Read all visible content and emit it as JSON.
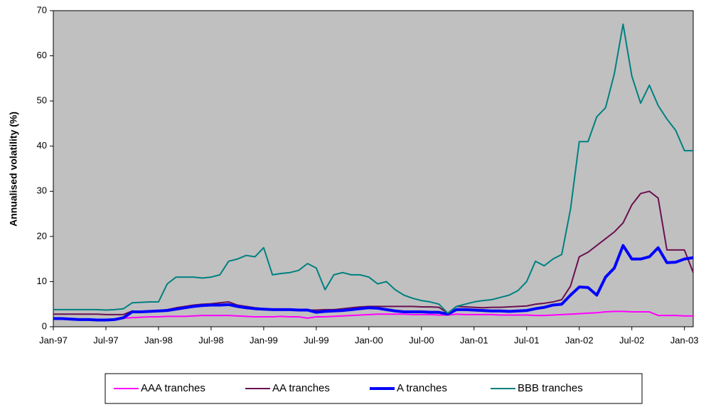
{
  "chart_data": {
    "type": "line",
    "y_label": "Annualised volatility (%)",
    "x": [
      "1997-01",
      "1997-02",
      "1997-03",
      "1997-04",
      "1997-05",
      "1997-06",
      "1997-07",
      "1997-08",
      "1997-09",
      "1997-10",
      "1997-11",
      "1997-12",
      "1998-01",
      "1998-02",
      "1998-03",
      "1998-04",
      "1998-05",
      "1998-06",
      "1998-07",
      "1998-08",
      "1998-09",
      "1998-10",
      "1998-11",
      "1998-12",
      "1999-01",
      "1999-02",
      "1999-03",
      "1999-04",
      "1999-05",
      "1999-06",
      "1999-07",
      "1999-08",
      "1999-09",
      "1999-10",
      "1999-11",
      "1999-12",
      "2000-01",
      "2000-02",
      "2000-03",
      "2000-04",
      "2000-05",
      "2000-06",
      "2000-07",
      "2000-08",
      "2000-09",
      "2000-10",
      "2000-11",
      "2000-12",
      "2001-01",
      "2001-02",
      "2001-03",
      "2001-04",
      "2001-05",
      "2001-06",
      "2001-07",
      "2001-08",
      "2001-09",
      "2001-10",
      "2001-11",
      "2001-12",
      "2002-01",
      "2002-02",
      "2002-03",
      "2002-04",
      "2002-05",
      "2002-06",
      "2002-07",
      "2002-08",
      "2002-09",
      "2002-10",
      "2002-11",
      "2002-12",
      "2003-01",
      "2003-02"
    ],
    "series": [
      {
        "name": "AAA tranches",
        "color": "#ff00ff",
        "width": 2,
        "values": [
          1.9,
          1.9,
          1.8,
          1.7,
          1.6,
          1.6,
          1.6,
          1.7,
          1.9,
          2,
          2.1,
          2.2,
          2.2,
          2.3,
          2.3,
          2.3,
          2.4,
          2.5,
          2.5,
          2.5,
          2.5,
          2.4,
          2.3,
          2.2,
          2.2,
          2.2,
          2.3,
          2.2,
          2.2,
          1.9,
          2.2,
          2.2,
          2.3,
          2.4,
          2.5,
          2.6,
          2.7,
          2.8,
          2.8,
          2.8,
          2.8,
          2.7,
          2.7,
          2.7,
          2.6,
          2.6,
          2.8,
          2.7,
          2.7,
          2.7,
          2.7,
          2.6,
          2.6,
          2.6,
          2.6,
          2.5,
          2.5,
          2.6,
          2.7,
          2.8,
          2.9,
          3,
          3.1,
          3.3,
          3.4,
          3.4,
          3.3,
          3.3,
          3.3,
          2.5,
          2.5,
          2.5,
          2.4,
          2.4
        ]
      },
      {
        "name": "AA tranches",
        "color": "#6b1050",
        "width": 2,
        "values": [
          2.8,
          2.8,
          2.8,
          2.8,
          2.8,
          2.8,
          2.7,
          2.7,
          2.7,
          3.5,
          3.3,
          3.4,
          3.6,
          3.8,
          4.2,
          4.5,
          4.8,
          5,
          5.1,
          5.3,
          5.5,
          4.8,
          4.5,
          4.2,
          4,
          3.8,
          3.7,
          3.8,
          3.8,
          3.7,
          3.7,
          3.8,
          3.8,
          4,
          4.2,
          4.4,
          4.5,
          4.5,
          4.5,
          4.5,
          4.5,
          4.5,
          4.4,
          4.4,
          4.3,
          3,
          4.5,
          4.4,
          4.3,
          4.2,
          4.3,
          4.3,
          4.4,
          4.5,
          4.6,
          5,
          5.2,
          5.5,
          6,
          9,
          15.5,
          16.5,
          18,
          19.5,
          21,
          23,
          27,
          29.5,
          30,
          28.5,
          17,
          17,
          17,
          12
        ]
      },
      {
        "name": "A tranches",
        "color": "#0000ff",
        "width": 4,
        "values": [
          1.8,
          1.8,
          1.7,
          1.6,
          1.6,
          1.5,
          1.5,
          1.6,
          2,
          3.3,
          3.3,
          3.4,
          3.5,
          3.6,
          3.9,
          4.2,
          4.5,
          4.7,
          4.8,
          4.8,
          4.9,
          4.5,
          4.2,
          4,
          3.9,
          3.8,
          3.8,
          3.8,
          3.7,
          3.7,
          3.2,
          3.4,
          3.5,
          3.6,
          3.8,
          4,
          4.2,
          4.1,
          3.8,
          3.5,
          3.3,
          3.3,
          3.3,
          3.2,
          3.2,
          2.8,
          3.8,
          3.8,
          3.7,
          3.6,
          3.5,
          3.5,
          3.4,
          3.5,
          3.6,
          4,
          4.3,
          4.8,
          5,
          7,
          8.8,
          8.7,
          7,
          11,
          13,
          18,
          15,
          15,
          15.5,
          17.5,
          14.2,
          14.3,
          15,
          15.3
        ]
      },
      {
        "name": "BBB tranches",
        "color": "#008080",
        "width": 2,
        "values": [
          3.8,
          3.8,
          3.8,
          3.8,
          3.8,
          3.8,
          3.7,
          3.8,
          4,
          5.3,
          5.4,
          5.5,
          5.5,
          9.5,
          11,
          11,
          11,
          10.8,
          11,
          11.5,
          14.5,
          15,
          15.8,
          15.5,
          17.5,
          11.5,
          11.8,
          12,
          12.5,
          14,
          13,
          8.2,
          11.5,
          12,
          11.5,
          11.5,
          11,
          9.5,
          10,
          8.2,
          7,
          6.3,
          5.8,
          5.5,
          5,
          3,
          4.5,
          5,
          5.5,
          5.8,
          6,
          6.5,
          7,
          8,
          10,
          14.5,
          13.5,
          15,
          16,
          26,
          41,
          41,
          46.5,
          48.5,
          56,
          67,
          55.5,
          49.5,
          53.5,
          49,
          46,
          43.5,
          39,
          39
        ]
      }
    ],
    "xlim": [
      "1997-01",
      "2003-02"
    ],
    "xticks": [
      {
        "value": "1997-01",
        "label": "Jan-97"
      },
      {
        "value": "1997-07",
        "label": "Jul-97"
      },
      {
        "value": "1998-01",
        "label": "Jan-98"
      },
      {
        "value": "1998-07",
        "label": "Jul-98"
      },
      {
        "value": "1999-01",
        "label": "Jan-99"
      },
      {
        "value": "1999-07",
        "label": "Jul-99"
      },
      {
        "value": "2000-01",
        "label": "Jan-00"
      },
      {
        "value": "2000-07",
        "label": "Jul-00"
      },
      {
        "value": "2001-01",
        "label": "Jan-01"
      },
      {
        "value": "2001-07",
        "label": "Jul-01"
      },
      {
        "value": "2002-01",
        "label": "Jan-02"
      },
      {
        "value": "2002-07",
        "label": "Jul-02"
      },
      {
        "value": "2003-01",
        "label": "Jan-03"
      }
    ],
    "ylim": [
      0,
      70
    ],
    "yticks": [
      0,
      10,
      20,
      30,
      40,
      50,
      60,
      70
    ],
    "plot_background": "#c0c0c0",
    "legend": "bottom"
  }
}
